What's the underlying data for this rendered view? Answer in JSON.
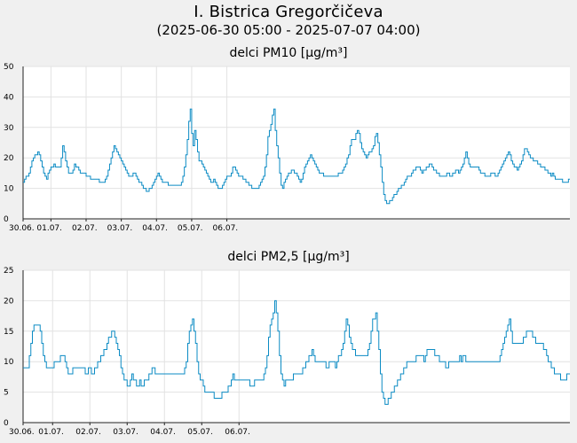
{
  "title": "I. Bistrica Gregorčičeva",
  "subtitle": "(2025-06-30 05:00 - 2025-07-07 04:00)",
  "colors": {
    "series": "#0b8bc4",
    "background": "#f0f0f0",
    "plot_background": "#ffffff",
    "grid": "#e2e2e2"
  },
  "chart_data": [
    {
      "type": "line",
      "title": "delci PM10 [µg/m³]",
      "xlabel": "",
      "ylabel": "",
      "ylim": [
        0,
        50
      ],
      "yticks": [
        0,
        10,
        20,
        30,
        40,
        50
      ],
      "grid": true,
      "x_tick_labels": [
        "30.06.",
        "01.07.",
        "02.07.",
        "03.07.",
        "04.07.",
        "05.07.",
        "06.07."
      ],
      "x_interval": "hourly, 2025-06-30 05:00 to 2025-07-07 04:00",
      "series": [
        {
          "values": [
            12,
            13,
            14,
            14,
            15,
            17,
            19,
            20,
            21,
            21,
            22,
            21,
            19,
            17,
            15,
            14,
            13,
            15,
            16,
            17,
            17,
            18,
            17,
            17,
            17,
            17,
            20,
            24,
            22,
            19,
            17,
            15,
            15,
            15,
            16,
            18,
            17,
            17,
            16,
            15,
            15,
            15,
            15,
            14,
            14,
            14,
            13,
            13,
            13,
            13,
            13,
            13,
            12,
            12,
            12,
            12,
            13,
            14,
            16,
            18,
            20,
            22,
            24,
            23,
            22,
            21,
            20,
            19,
            18,
            17,
            16,
            15,
            14,
            14,
            14,
            15,
            15,
            14,
            13,
            12,
            12,
            11,
            10,
            10,
            9,
            9,
            10,
            10,
            11,
            12,
            13,
            14,
            15,
            14,
            13,
            12,
            12,
            12,
            12,
            11,
            11,
            11,
            11,
            11,
            11,
            11,
            11,
            11,
            12,
            14,
            17,
            21,
            26,
            32,
            36,
            28,
            24,
            29,
            26,
            22,
            19,
            19,
            18,
            17,
            16,
            15,
            14,
            13,
            12,
            12,
            13,
            12,
            11,
            10,
            10,
            10,
            11,
            12,
            13,
            14,
            14,
            14,
            15,
            17,
            17,
            16,
            15,
            14,
            14,
            14,
            13,
            13,
            12,
            12,
            11,
            11,
            10,
            10,
            10,
            10,
            10,
            11,
            12,
            13,
            14,
            17,
            21,
            27,
            29,
            31,
            34,
            36,
            29,
            24,
            20,
            15,
            11,
            10,
            12,
            13,
            14,
            15,
            15,
            16,
            16,
            15,
            15,
            14,
            13,
            12,
            13,
            15,
            17,
            18,
            19,
            20,
            21,
            20,
            19,
            18,
            17,
            16,
            15,
            15,
            15,
            14,
            14,
            14,
            14,
            14,
            14,
            14,
            14,
            14,
            14,
            15,
            15,
            15,
            16,
            17,
            18,
            20,
            21,
            24,
            26,
            26,
            26,
            28,
            29,
            28,
            25,
            23,
            22,
            21,
            20,
            21,
            22,
            22,
            23,
            24,
            27,
            28,
            25,
            21,
            17,
            12,
            8,
            6,
            5,
            5,
            6,
            6,
            7,
            8,
            8,
            9,
            10,
            10,
            11,
            11,
            12,
            13,
            14,
            14,
            14,
            15,
            16,
            16,
            17,
            17,
            17,
            16,
            15,
            16,
            16,
            17,
            17,
            18,
            18,
            17,
            16,
            16,
            15,
            15,
            14,
            14,
            14,
            14,
            14,
            15,
            15,
            14,
            14,
            15,
            15,
            16,
            16,
            15,
            16,
            17,
            18,
            20,
            22,
            20,
            18,
            17,
            17,
            17,
            17,
            17,
            17,
            16,
            15,
            15,
            15,
            14,
            14,
            14,
            14,
            15,
            15,
            15,
            14,
            14,
            15,
            16,
            17,
            18,
            19,
            20,
            21,
            22,
            21,
            19,
            18,
            17,
            17,
            16,
            17,
            18,
            19,
            21,
            23,
            23,
            22,
            21,
            20,
            20,
            19,
            19,
            19,
            18,
            18,
            17,
            17,
            17,
            16,
            16,
            15,
            15,
            14,
            15,
            14,
            13,
            13,
            13,
            13,
            13,
            12,
            12,
            12,
            12,
            13,
            13
          ]
        }
      ]
    },
    {
      "type": "line",
      "title": "delci PM2,5 [µg/m³]",
      "xlabel": "",
      "ylabel": "",
      "ylim": [
        0,
        25
      ],
      "yticks": [
        0,
        5,
        10,
        15,
        20,
        25
      ],
      "grid": true,
      "x_tick_labels": [
        "30.06.",
        "01.07.",
        "02.07.",
        "03.07.",
        "04.07.",
        "05.07.",
        "06.07."
      ],
      "x_interval": "hourly, 2025-06-30 05:00 to 2025-07-07 04:00",
      "series": [
        {
          "values": [
            9,
            9,
            9,
            9,
            11,
            13,
            15,
            16,
            16,
            16,
            16,
            15,
            13,
            11,
            10,
            9,
            9,
            9,
            9,
            9,
            10,
            10,
            10,
            10,
            11,
            11,
            11,
            10,
            9,
            8,
            8,
            8,
            9,
            9,
            9,
            9,
            9,
            9,
            9,
            9,
            8,
            8,
            9,
            9,
            8,
            8,
            9,
            9,
            10,
            10,
            11,
            11,
            12,
            12,
            13,
            14,
            14,
            15,
            15,
            14,
            13,
            12,
            11,
            9,
            8,
            7,
            7,
            6,
            6,
            7,
            8,
            7,
            7,
            6,
            6,
            7,
            6,
            6,
            7,
            7,
            7,
            8,
            8,
            9,
            9,
            8,
            8,
            8,
            8,
            8,
            8,
            8,
            8,
            8,
            8,
            8,
            8,
            8,
            8,
            8,
            8,
            8,
            8,
            8,
            9,
            10,
            13,
            15,
            16,
            17,
            15,
            13,
            10,
            8,
            7,
            7,
            6,
            5,
            5,
            5,
            5,
            5,
            5,
            4,
            4,
            4,
            4,
            4,
            5,
            5,
            5,
            5,
            6,
            6,
            7,
            8,
            7,
            7,
            7,
            7,
            7,
            7,
            7,
            7,
            7,
            7,
            6,
            6,
            6,
            7,
            7,
            7,
            7,
            7,
            7,
            8,
            9,
            11,
            14,
            16,
            17,
            18,
            20,
            18,
            15,
            11,
            8,
            7,
            6,
            7,
            7,
            7,
            7,
            7,
            8,
            8,
            8,
            8,
            8,
            8,
            9,
            9,
            10,
            10,
            11,
            11,
            12,
            11,
            10,
            10,
            10,
            10,
            10,
            10,
            10,
            9,
            9,
            10,
            10,
            10,
            10,
            9,
            10,
            11,
            11,
            12,
            13,
            15,
            17,
            16,
            14,
            13,
            12,
            12,
            11,
            11,
            11,
            11,
            11,
            11,
            11,
            11,
            12,
            13,
            15,
            17,
            17,
            18,
            15,
            12,
            8,
            5,
            4,
            3,
            3,
            4,
            4,
            5,
            5,
            6,
            6,
            7,
            7,
            8,
            8,
            9,
            9,
            10,
            10,
            10,
            10,
            10,
            10,
            11,
            11,
            11,
            11,
            11,
            10,
            11,
            12,
            12,
            12,
            12,
            12,
            11,
            11,
            11,
            10,
            10,
            10,
            10,
            9,
            9,
            10,
            10,
            10,
            10,
            10,
            10,
            10,
            11,
            10,
            11,
            11,
            10,
            10,
            10,
            10,
            10,
            10,
            10,
            10,
            10,
            10,
            10,
            10,
            10,
            10,
            10,
            10,
            10,
            10,
            10,
            10,
            10,
            10,
            11,
            12,
            13,
            14,
            15,
            16,
            17,
            15,
            13,
            13,
            13,
            13,
            13,
            13,
            13,
            14,
            14,
            15,
            15,
            15,
            15,
            14,
            14,
            13,
            13,
            13,
            13,
            13,
            12,
            12,
            11,
            10,
            10,
            9,
            9,
            8,
            8,
            8,
            8,
            7,
            7,
            7,
            7,
            8,
            8,
            8
          ]
        }
      ]
    }
  ]
}
